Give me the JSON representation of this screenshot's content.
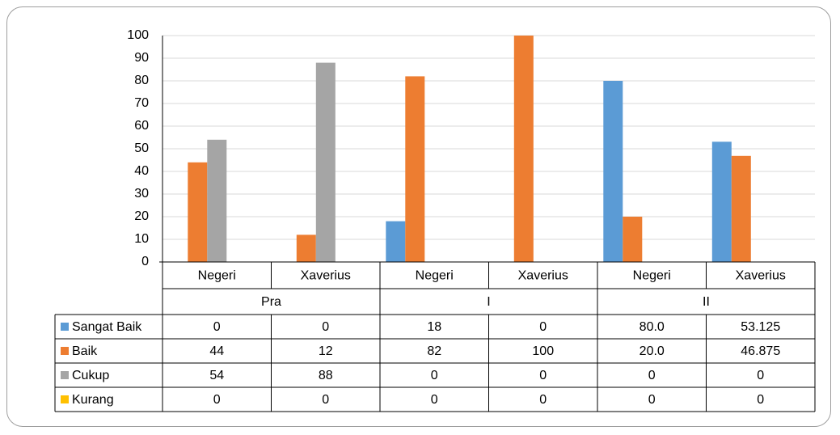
{
  "chart_data": {
    "type": "bar",
    "groups": [
      "Pra",
      "I",
      "II"
    ],
    "categories": [
      "Negeri",
      "Xaverius",
      "Negeri",
      "Xaverius",
      "Negeri",
      "Xaverius"
    ],
    "yticks": [
      "0",
      "10",
      "20",
      "30",
      "40",
      "50",
      "60",
      "70",
      "80",
      "90",
      "100"
    ],
    "ylim": [
      0,
      100
    ],
    "grid": true,
    "legend": "data-table",
    "series": [
      {
        "name": "Sangat Baik",
        "color": "#5B9BD5",
        "values": [
          0,
          0,
          18,
          0,
          80.0,
          53.125
        ],
        "labels": [
          "0",
          "0",
          "18",
          "0",
          "80.0",
          "53.125"
        ]
      },
      {
        "name": "Baik",
        "color": "#ED7D31",
        "values": [
          44,
          12,
          82,
          100,
          20.0,
          46.875
        ],
        "labels": [
          "44",
          "12",
          "82",
          "100",
          "20.0",
          "46.875"
        ]
      },
      {
        "name": "Cukup",
        "color": "#A5A5A5",
        "values": [
          54,
          88,
          0,
          0,
          0,
          0
        ],
        "labels": [
          "54",
          "88",
          "0",
          "0",
          "0",
          "0"
        ]
      },
      {
        "name": "Kurang",
        "color": "#FFC000",
        "values": [
          0,
          0,
          0,
          0,
          0,
          0
        ],
        "labels": [
          "0",
          "0",
          "0",
          "0",
          "0",
          "0"
        ]
      }
    ]
  }
}
